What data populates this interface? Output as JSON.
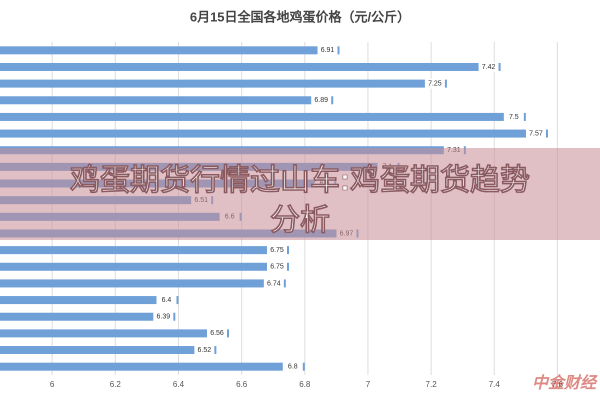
{
  "chart_data": {
    "type": "barh",
    "title": "6月15日全国各地鸡蛋价格（元/公斤）",
    "categories": [
      null,
      null,
      null,
      null,
      null,
      null,
      null,
      null,
      null,
      null,
      null,
      null,
      null,
      null,
      null,
      null,
      null,
      null,
      null,
      null
    ],
    "values": [
      6.91,
      7.42,
      7.25,
      6.89,
      7.5,
      7.57,
      7.31,
      7.1,
      6.9,
      6.51,
      6.6,
      6.97,
      6.75,
      6.75,
      6.74,
      6.4,
      6.39,
      6.56,
      6.52,
      6.8
    ],
    "color": "#6fa0d8",
    "xlim": [
      5.8,
      7.7
    ],
    "xticks": [
      6,
      6.2,
      6.4,
      6.6,
      6.8,
      7,
      7.2,
      7.4,
      7.6
    ],
    "grid": true,
    "banner": "鸡蛋期货行情过山车:鸡蛋期货趋势分析",
    "watermark": "中金财经"
  }
}
